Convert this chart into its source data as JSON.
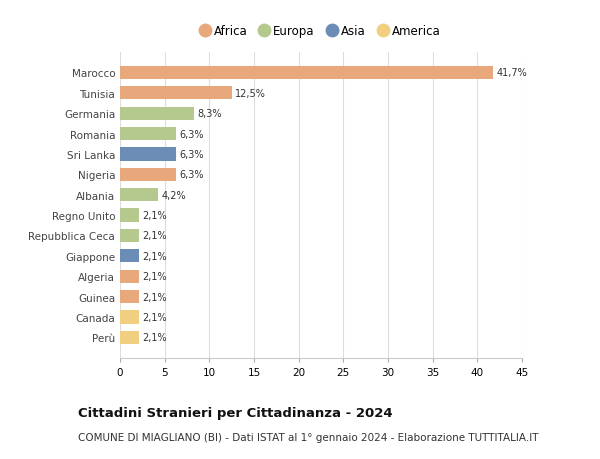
{
  "countries": [
    "Marocco",
    "Tunisia",
    "Germania",
    "Romania",
    "Sri Lanka",
    "Nigeria",
    "Albania",
    "Regno Unito",
    "Repubblica Ceca",
    "Giappone",
    "Algeria",
    "Guinea",
    "Canada",
    "Perù"
  ],
  "values": [
    41.7,
    12.5,
    8.3,
    6.3,
    6.3,
    6.3,
    4.2,
    2.1,
    2.1,
    2.1,
    2.1,
    2.1,
    2.1,
    2.1
  ],
  "labels": [
    "41,7%",
    "12,5%",
    "8,3%",
    "6,3%",
    "6,3%",
    "6,3%",
    "4,2%",
    "2,1%",
    "2,1%",
    "2,1%",
    "2,1%",
    "2,1%",
    "2,1%",
    "2,1%"
  ],
  "continents": [
    "Africa",
    "Africa",
    "Europa",
    "Europa",
    "Asia",
    "Africa",
    "Europa",
    "Europa",
    "Europa",
    "Asia",
    "Africa",
    "Africa",
    "America",
    "America"
  ],
  "continent_colors": {
    "Africa": "#E8A87C",
    "Europa": "#B5C98E",
    "Asia": "#6B8DB5",
    "America": "#F0D080"
  },
  "legend_order": [
    "Africa",
    "Europa",
    "Asia",
    "America"
  ],
  "title": "Cittadini Stranieri per Cittadinanza - 2024",
  "subtitle": "COMUNE DI MIAGLIANO (BI) - Dati ISTAT al 1° gennaio 2024 - Elaborazione TUTTITALIA.IT",
  "xlim": [
    0,
    45
  ],
  "xticks": [
    0,
    5,
    10,
    15,
    20,
    25,
    30,
    35,
    40,
    45
  ],
  "bg_color": "#ffffff",
  "grid_color": "#dddddd"
}
